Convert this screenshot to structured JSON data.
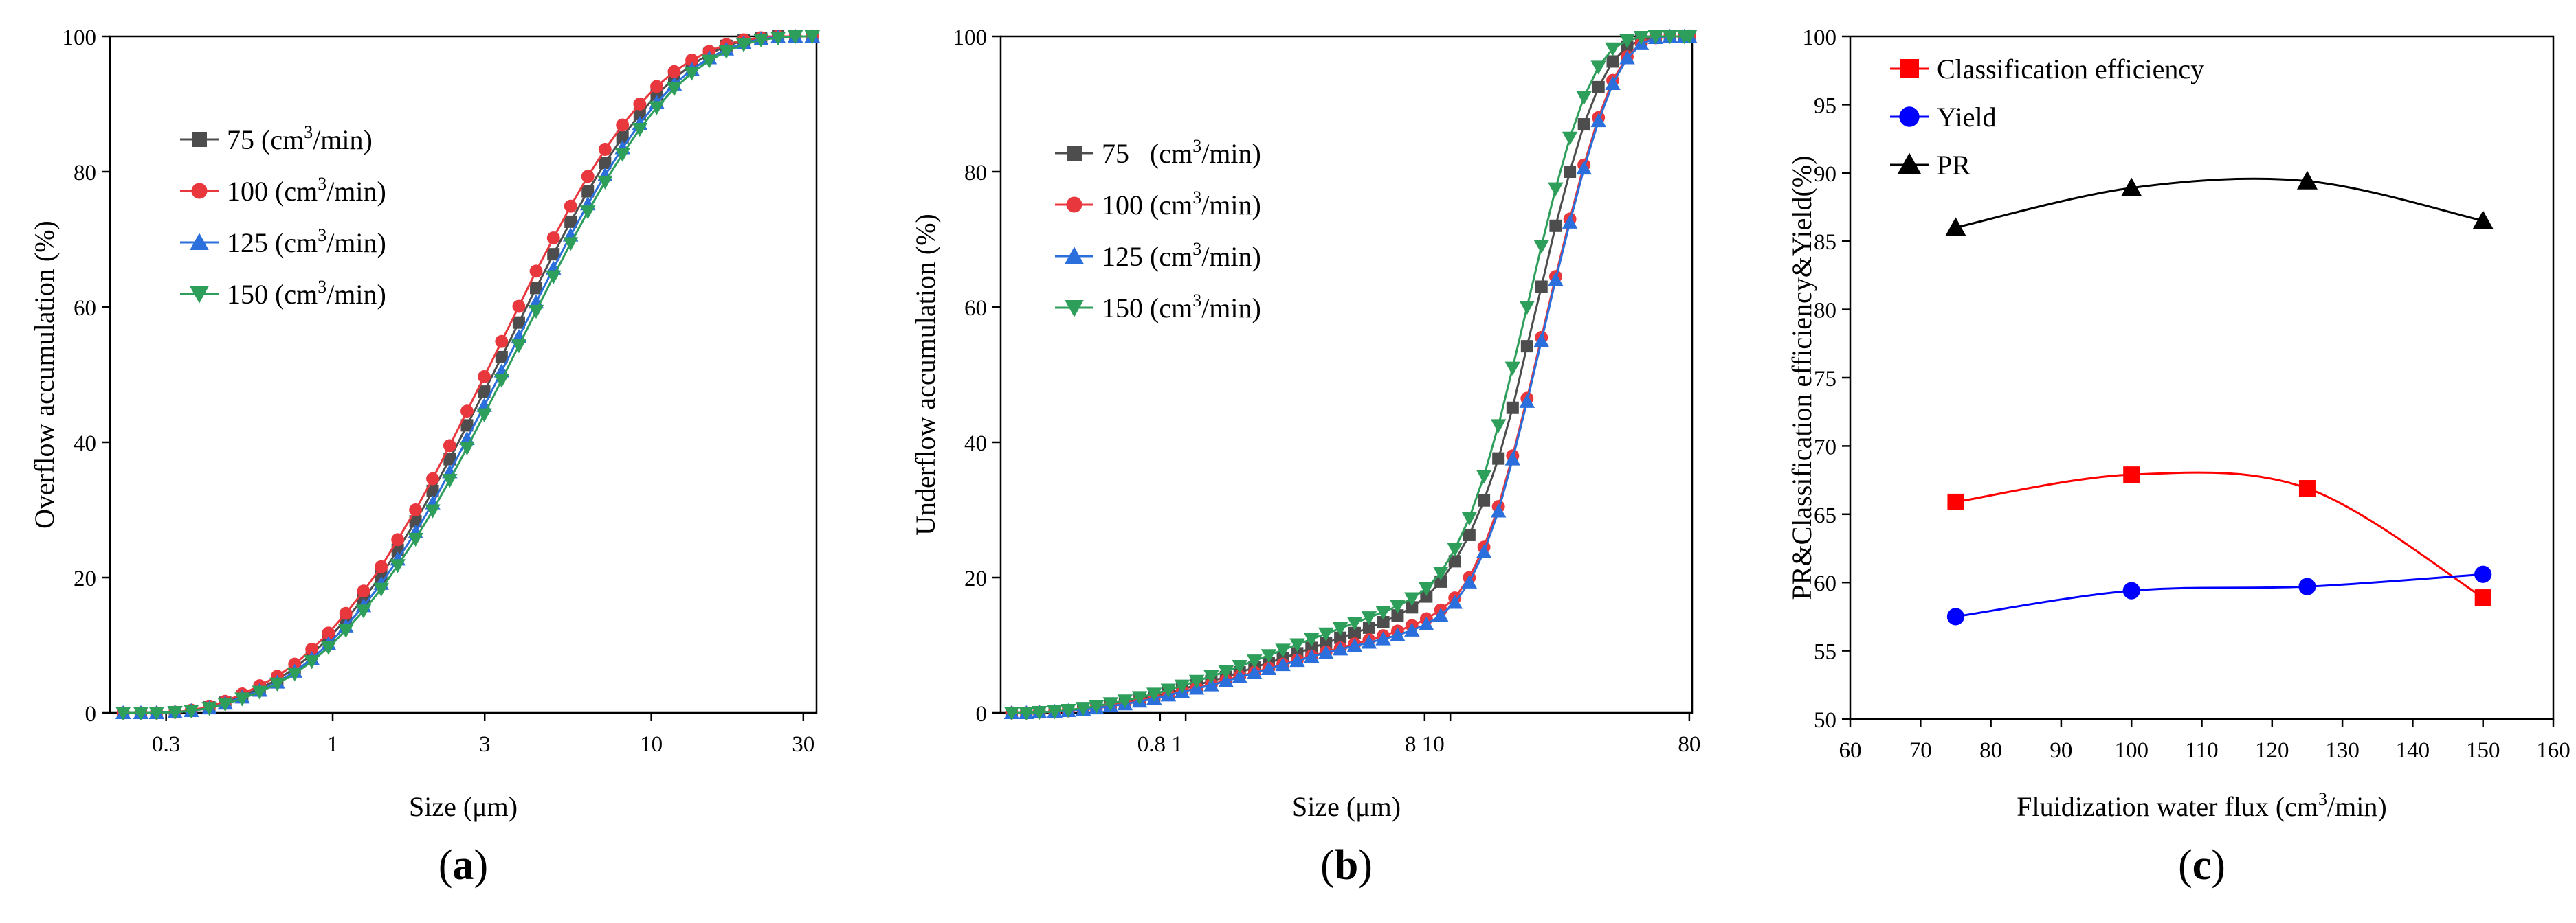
{
  "chart_data": [
    {
      "panel": "(a)",
      "panel_letter": "a",
      "type": "line",
      "xscale": "log",
      "xlabel": "Size (μm)",
      "ylabel": "Overflow accumulation (%)",
      "xlim": [
        0.2,
        33
      ],
      "ylim": [
        0,
        100
      ],
      "xticks": [
        0.3,
        1,
        3,
        10,
        30
      ],
      "xticklabels": [
        "0.3",
        "1",
        "3",
        "10",
        "30"
      ],
      "yticks": [
        0,
        20,
        40,
        60,
        80,
        100
      ],
      "legend_position": "upper-left",
      "legend_unit_prefix": "(cm",
      "legend_unit_exp": "3",
      "legend_unit_suffix": "/min)",
      "x": [
        0.22,
        0.25,
        0.28,
        0.32,
        0.36,
        0.41,
        0.46,
        0.52,
        0.59,
        0.67,
        0.76,
        0.86,
        0.97,
        1.1,
        1.25,
        1.42,
        1.6,
        1.82,
        2.06,
        2.33,
        2.64,
        2.99,
        3.39,
        3.84,
        4.35,
        4.93,
        5.58,
        6.32,
        7.16,
        8.12,
        9.2,
        10.4,
        11.8,
        13.4,
        15.2,
        17.2,
        19.5,
        22.1,
        25.0,
        28.3,
        32.0
      ],
      "series": [
        {
          "name": "75",
          "color": "#4d4d4d",
          "marker": "square",
          "values": [
            0,
            0,
            0,
            0.1,
            0.3,
            0.8,
            1.5,
            2.5,
            3.6,
            4.9,
            6.6,
            8.7,
            11.0,
            13.8,
            16.9,
            20.3,
            24.1,
            28.3,
            32.8,
            37.5,
            42.5,
            47.5,
            52.6,
            57.7,
            62.8,
            67.8,
            72.6,
            77.1,
            81.3,
            85.1,
            88.5,
            91.4,
            93.8,
            95.8,
            97.4,
            98.6,
            99.4,
            99.8,
            100,
            100,
            100
          ]
        },
        {
          "name": "100",
          "color": "#e8383d",
          "marker": "circle",
          "values": [
            0,
            0,
            0,
            0.1,
            0.4,
            0.9,
            1.7,
            2.8,
            4.0,
            5.4,
            7.2,
            9.4,
            11.8,
            14.7,
            18.0,
            21.6,
            25.6,
            30.0,
            34.6,
            39.5,
            44.6,
            49.7,
            54.9,
            60.1,
            65.3,
            70.2,
            74.9,
            79.3,
            83.3,
            86.9,
            90.0,
            92.6,
            94.8,
            96.5,
            97.8,
            98.8,
            99.5,
            99.8,
            100,
            100,
            100
          ]
        },
        {
          "name": "125",
          "color": "#2a6fdb",
          "marker": "triangle-up",
          "values": [
            0,
            0,
            0,
            0.1,
            0.3,
            0.7,
            1.4,
            2.3,
            3.3,
            4.5,
            6.1,
            8.0,
            10.2,
            12.8,
            15.8,
            19.1,
            22.7,
            26.7,
            31.0,
            35.6,
            40.5,
            45.4,
            50.5,
            55.6,
            60.7,
            65.7,
            70.6,
            75.2,
            79.5,
            83.5,
            87.1,
            90.2,
            92.9,
            95.1,
            96.8,
            98.1,
            99.0,
            99.6,
            99.9,
            100,
            100
          ]
        },
        {
          "name": "150",
          "color": "#2e9e5b",
          "marker": "triangle-down",
          "values": [
            0,
            0,
            0,
            0.1,
            0.3,
            0.7,
            1.3,
            2.1,
            3.1,
            4.3,
            5.8,
            7.6,
            9.7,
            12.2,
            15.1,
            18.3,
            21.8,
            25.7,
            29.9,
            34.4,
            39.2,
            44.1,
            49.2,
            54.3,
            59.4,
            64.5,
            69.4,
            74.1,
            78.5,
            82.6,
            86.3,
            89.5,
            92.3,
            94.6,
            96.4,
            97.8,
            98.8,
            99.5,
            99.8,
            100,
            100
          ]
        }
      ]
    },
    {
      "panel": "(b)",
      "panel_letter": "b",
      "type": "line",
      "xscale": "log",
      "xlabel": "Size (μm)",
      "ylabel": "Underflow accumulation (%)",
      "xlim": [
        0.2,
        82
      ],
      "ylim": [
        0,
        100
      ],
      "xticks": [
        0.8,
        1,
        8,
        10,
        80
      ],
      "xticklabels": [
        "0.8 1",
        "",
        "8 10",
        "",
        "80"
      ],
      "yticks": [
        0,
        20,
        40,
        60,
        80,
        100
      ],
      "legend_position": "upper-left",
      "legend_unit_prefix": "(cm",
      "legend_unit_exp": "3",
      "legend_unit_suffix": "/min)",
      "x": [
        0.22,
        0.25,
        0.28,
        0.32,
        0.36,
        0.41,
        0.46,
        0.52,
        0.59,
        0.67,
        0.76,
        0.86,
        0.97,
        1.1,
        1.25,
        1.42,
        1.6,
        1.82,
        2.06,
        2.33,
        2.64,
        2.99,
        3.39,
        3.84,
        4.35,
        4.93,
        5.58,
        6.32,
        7.16,
        8.12,
        9.2,
        10.4,
        11.8,
        13.4,
        15.2,
        17.2,
        19.5,
        22.1,
        25.0,
        28.3,
        32.0,
        36.3,
        41.1,
        46.6,
        52.7,
        59.7,
        67.6,
        76.6,
        80.0
      ],
      "series": [
        {
          "name": "75",
          "color": "#4d4d4d",
          "marker": "square",
          "values": [
            0,
            0,
            0.1,
            0.2,
            0.4,
            0.6,
            0.9,
            1.2,
            1.6,
            2.0,
            2.5,
            3.0,
            3.5,
            4.1,
            4.7,
            5.3,
            6.0,
            6.7,
            7.4,
            8.1,
            8.8,
            9.6,
            10.3,
            11.1,
            11.8,
            12.6,
            13.4,
            14.4,
            15.6,
            17.2,
            19.4,
            22.4,
            26.3,
            31.4,
            37.6,
            45.1,
            54.2,
            63.0,
            72.0,
            80.0,
            87.0,
            92.5,
            96.3,
            98.5,
            99.5,
            99.9,
            100,
            100,
            100
          ]
        },
        {
          "name": "100",
          "color": "#e8383d",
          "marker": "circle",
          "values": [
            0,
            0,
            0.1,
            0.2,
            0.3,
            0.5,
            0.8,
            1.1,
            1.4,
            1.8,
            2.2,
            2.7,
            3.2,
            3.7,
            4.2,
            4.8,
            5.4,
            6.0,
            6.6,
            7.2,
            7.8,
            8.4,
            9.0,
            9.6,
            10.2,
            10.8,
            11.4,
            12.1,
            12.9,
            13.9,
            15.2,
            17.0,
            20.0,
            24.5,
            30.5,
            38.0,
            46.5,
            55.5,
            64.5,
            73.0,
            81.0,
            88.0,
            93.5,
            97.0,
            99.0,
            99.8,
            100,
            100,
            100
          ]
        },
        {
          "name": "125",
          "color": "#2a6fdb",
          "marker": "triangle-up",
          "values": [
            0,
            0,
            0.1,
            0.2,
            0.3,
            0.5,
            0.7,
            1.0,
            1.3,
            1.7,
            2.1,
            2.6,
            3.1,
            3.6,
            4.1,
            4.7,
            5.3,
            5.9,
            6.5,
            7.1,
            7.7,
            8.3,
            8.9,
            9.4,
            9.9,
            10.4,
            10.9,
            11.5,
            12.2,
            13.1,
            14.4,
            16.3,
            19.3,
            23.8,
            29.8,
            37.5,
            46.0,
            55.0,
            64.0,
            72.5,
            80.5,
            87.5,
            93.0,
            96.8,
            98.9,
            99.8,
            100,
            100,
            100
          ]
        },
        {
          "name": "150",
          "color": "#2e9e5b",
          "marker": "triangle-down",
          "values": [
            0,
            0,
            0.1,
            0.2,
            0.4,
            0.7,
            1.0,
            1.4,
            1.8,
            2.3,
            2.8,
            3.4,
            4.0,
            4.7,
            5.4,
            6.1,
            6.9,
            7.7,
            8.5,
            9.3,
            10.1,
            10.9,
            11.7,
            12.5,
            13.3,
            14.1,
            14.9,
            15.8,
            16.9,
            18.4,
            20.7,
            24.2,
            28.8,
            35.0,
            42.5,
            51.0,
            60.0,
            69.0,
            77.5,
            85.0,
            91.0,
            95.5,
            98.2,
            99.4,
            99.9,
            100,
            100,
            100,
            100
          ]
        }
      ]
    },
    {
      "panel": "(c)",
      "panel_letter": "c",
      "type": "line",
      "xscale": "linear",
      "xlabel_prefix": "Fluidization water flux (cm",
      "xlabel_exp": "3",
      "xlabel_suffix": "/min)",
      "ylabel": "PR&Classification efficiency&Yield(%)",
      "xlim": [
        60,
        160
      ],
      "ylim": [
        50,
        100
      ],
      "xticks": [
        60,
        70,
        80,
        90,
        100,
        110,
        120,
        130,
        140,
        150,
        160
      ],
      "xticklabels": [
        "60",
        "70",
        "80",
        "90",
        "100",
        "110",
        "120",
        "130",
        "140",
        "150",
        "160"
      ],
      "yticks": [
        50,
        55,
        60,
        65,
        70,
        75,
        80,
        85,
        90,
        95,
        100
      ],
      "legend_position": "upper-left",
      "x": [
        75,
        100,
        125,
        150
      ],
      "series": [
        {
          "name": "Classification efficiency",
          "color": "#ff0000",
          "marker": "square",
          "values": [
            65.9,
            67.9,
            66.9,
            58.9
          ]
        },
        {
          "name": "Yield",
          "color": "#0000ff",
          "marker": "circle",
          "values": [
            57.5,
            59.4,
            59.7,
            60.6
          ]
        },
        {
          "name": "PR",
          "color": "#000000",
          "marker": "triangle-up",
          "values": [
            86.0,
            88.9,
            89.4,
            86.5
          ]
        }
      ]
    }
  ]
}
